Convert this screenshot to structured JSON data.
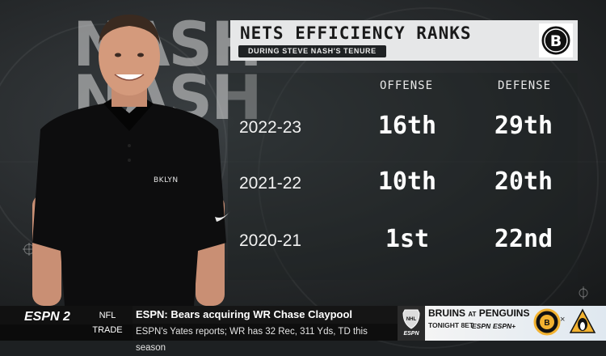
{
  "watermark": {
    "text": "NASH NASH"
  },
  "graphic": {
    "title": "NETS EFFICIENCY RANKS",
    "subtitle": "DURING STEVE NASH'S TENURE",
    "columns": [
      "OFFENSE",
      "DEFENSE"
    ],
    "rows": [
      {
        "season": "2022-23",
        "offense": "16th",
        "defense": "29th"
      },
      {
        "season": "2021-22",
        "offense": "10th",
        "defense": "20th"
      },
      {
        "season": "2020-21",
        "offense": "1st",
        "defense": "22nd"
      }
    ],
    "logo_icon": "brooklyn-nets-logo",
    "shirt_text": "BKLYN"
  },
  "ticker": {
    "network": "ESPN 2",
    "topic": "NFL TRADE",
    "headline": "ESPN: Bears acquiring WR Chase Claypool",
    "subline": "ESPN's Yates reports; WR has 32 Rec, 311 Yds, TD this season"
  },
  "game": {
    "league_icon": "nhl-shield-icon",
    "league_sub": "ESPN",
    "away": "BRUINS",
    "at": "AT",
    "home": "PENGUINS",
    "time": "TONIGHT 8ET",
    "networks": [
      "ESPN",
      "ESPN+"
    ],
    "vs": "×",
    "away_icon": "bruins-logo",
    "home_icon": "penguins-logo"
  },
  "colors": {
    "panel": "#e6e7e8",
    "ticker": "#111111",
    "text": "#ffffff"
  }
}
